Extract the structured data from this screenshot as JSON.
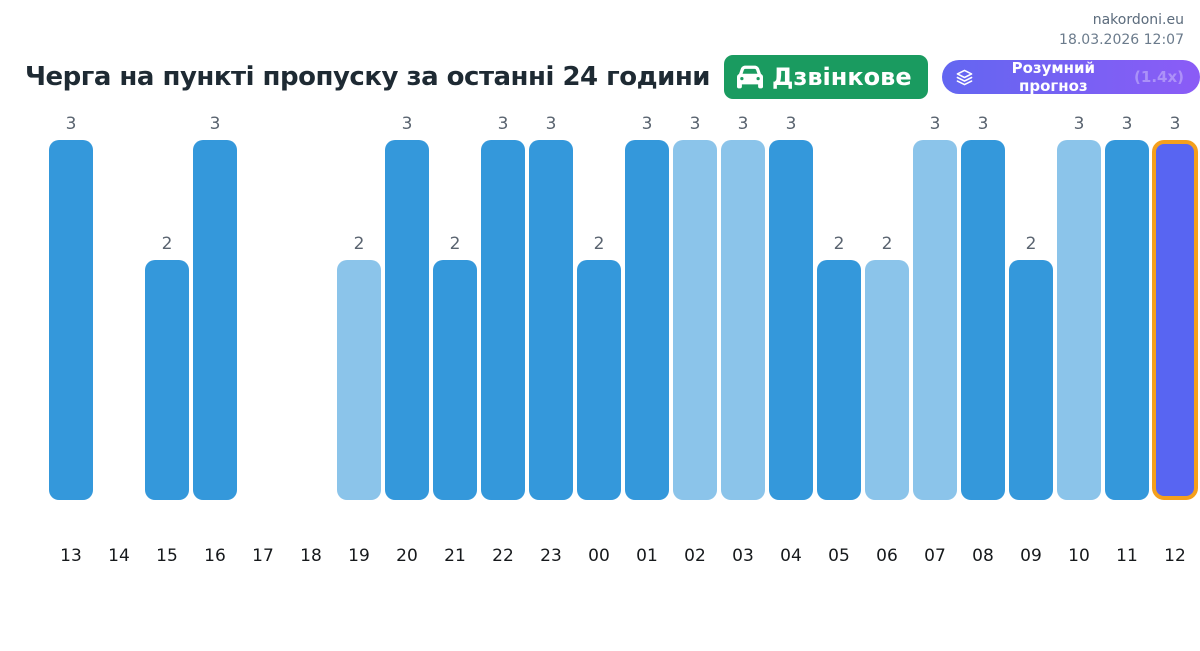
{
  "header": {
    "site": "nakordoni.eu",
    "datetime": "18.03.2026 12:07",
    "title": "Черга на пункті пропуску за останні 24 години",
    "checkpoint_badge": {
      "label": "Дзвінкове",
      "icon": "car-icon"
    },
    "forecast_button": {
      "label": "Розумний прогноз",
      "multiplier": "(1.4x)",
      "icon": "layers-icon"
    }
  },
  "chart_data": {
    "type": "bar",
    "title": "Черга на пункті пропуску за останні 24 години",
    "xlabel": "",
    "ylabel": "",
    "ylim": [
      0,
      3
    ],
    "grid": false,
    "value_labels": true,
    "legend_position": "none",
    "categories": [
      "13",
      "14",
      "15",
      "16",
      "17",
      "18",
      "19",
      "20",
      "21",
      "22",
      "23",
      "00",
      "01",
      "02",
      "03",
      "04",
      "05",
      "06",
      "07",
      "08",
      "09",
      "10",
      "11",
      "12"
    ],
    "values": [
      3,
      null,
      2,
      3,
      null,
      null,
      2,
      3,
      2,
      3,
      3,
      2,
      3,
      3,
      3,
      3,
      2,
      2,
      3,
      3,
      2,
      3,
      3,
      3
    ],
    "bar_styles": [
      "primary",
      null,
      "primary",
      "primary",
      null,
      null,
      "light",
      "primary",
      "primary",
      "primary",
      "primary",
      "primary",
      "primary",
      "light",
      "light",
      "primary",
      "primary",
      "light",
      "light",
      "primary",
      "primary",
      "light",
      "primary",
      "current"
    ]
  },
  "colors": {
    "bar_primary": "#3498db",
    "bar_light": "#8bc4ea",
    "bar_current_fill": "#5865f2",
    "bar_current_border": "#f5a01d",
    "badge_green": "#1a9b60",
    "button_gradient_start": "#6366f1",
    "button_gradient_end": "#8b5cf6"
  }
}
